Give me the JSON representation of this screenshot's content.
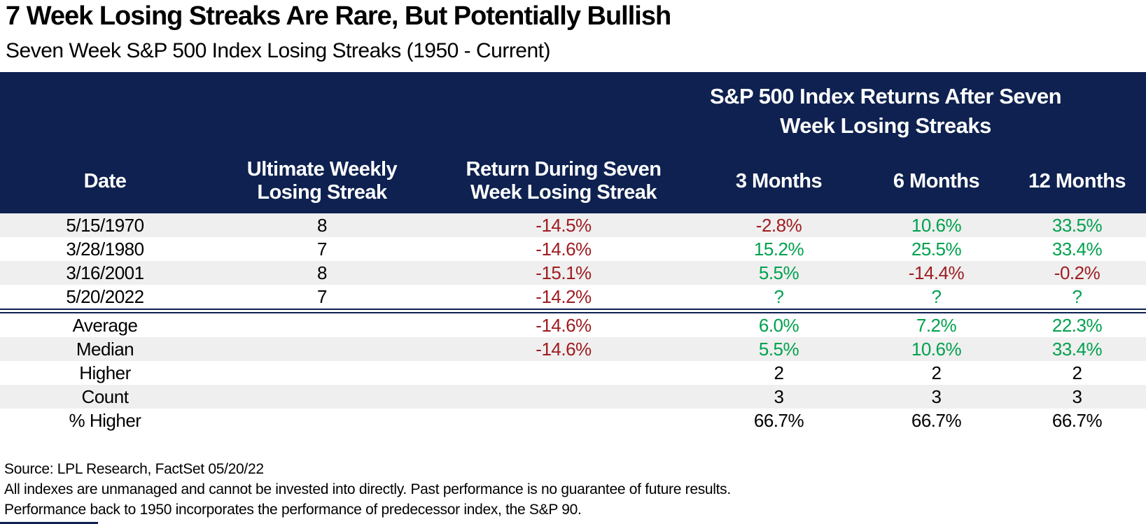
{
  "title": "7 Week Losing Streaks Are Rare, But Potentially Bullish",
  "subtitle": "Seven Week S&P 500 Index Losing Streaks (1950 - Current)",
  "table": {
    "group_header_line1": "S&P 500 Index Returns After Seven",
    "group_header_line2": "Week Losing Streaks",
    "col_date": "Date",
    "col_streak_line1": "Ultimate Weekly",
    "col_streak_line2": "Losing Streak",
    "col_return_line1": "Return During Seven",
    "col_return_line2": "Week Losing Streak",
    "col_3m": "3 Months",
    "col_6m": "6 Months",
    "col_12m": "12 Months"
  },
  "chart_data": {
    "type": "table",
    "title": "7 Week Losing Streaks Are Rare, But Potentially Bullish",
    "subtitle": "Seven Week S&P 500 Index Losing Streaks (1950 - Current)",
    "group_header": "S&P 500 Index Returns After Seven Week Losing Streaks",
    "columns": [
      "Date",
      "Ultimate Weekly Losing Streak",
      "Return During Seven Week Losing Streak",
      "3 Months",
      "6 Months",
      "12 Months"
    ],
    "rows": [
      [
        "5/15/1970",
        "8",
        "-14.5%",
        "-2.8%",
        "10.6%",
        "33.5%"
      ],
      [
        "3/28/1980",
        "7",
        "-14.6%",
        "15.2%",
        "25.5%",
        "33.4%"
      ],
      [
        "3/16/2001",
        "8",
        "-15.1%",
        "5.5%",
        "-14.4%",
        "-0.2%"
      ],
      [
        "5/20/2022",
        "7",
        "-14.2%",
        "?",
        "?",
        "?"
      ]
    ],
    "summary_rows": [
      [
        "Average",
        "",
        "-14.6%",
        "6.0%",
        "7.2%",
        "22.3%"
      ],
      [
        "Median",
        "",
        "-14.6%",
        "5.5%",
        "10.6%",
        "33.4%"
      ],
      [
        "Higher",
        "",
        "",
        "2",
        "2",
        "2"
      ],
      [
        "Count",
        "",
        "",
        "3",
        "3",
        "3"
      ],
      [
        "% Higher",
        "",
        "",
        "66.7%",
        "66.7%",
        "66.7%"
      ]
    ]
  },
  "footer": {
    "source": "Source: LPL Research, FactSet 05/20/22",
    "disclaimer1": "All indexes are unmanaged and cannot be invested into directly. Past performance is no guarantee of future results.",
    "disclaimer2": "Performance back to 1950 incorporates the performance of predecessor index, the S&P 90."
  },
  "colors": {
    "navy": "#0E2150",
    "negative_red": "#9F1C20",
    "positive_green": "#00A14E",
    "row_stripe": "#EFEFEF"
  }
}
